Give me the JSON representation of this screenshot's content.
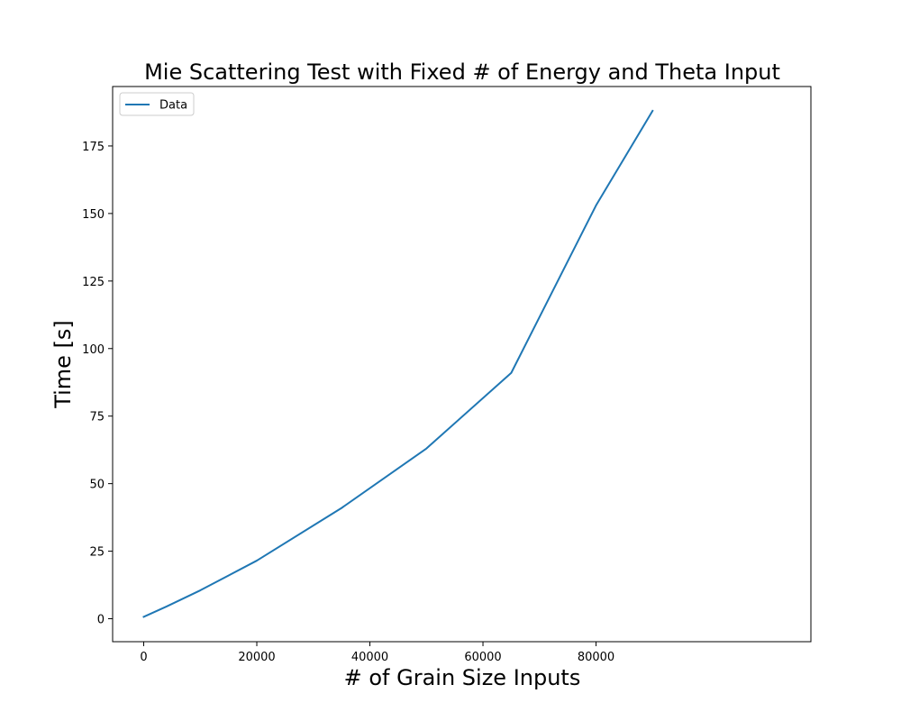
{
  "chart_data": {
    "type": "line",
    "title": "Mie Scattering Test with Fixed # of Energy and Theta Input",
    "xlabel": "# of Grain Size Inputs",
    "ylabel": "Time [s]",
    "xlim": [
      -5500,
      118000
    ],
    "ylim": [
      -8.5,
      197
    ],
    "xticks": [
      0,
      20000,
      40000,
      60000,
      80000
    ],
    "yticks": [
      0,
      25,
      50,
      75,
      100,
      125,
      150,
      175
    ],
    "xtick_labels": [
      "0",
      "20000",
      "40000",
      "60000",
      "80000"
    ],
    "ytick_labels": [
      "0",
      "25",
      "50",
      "75",
      "100",
      "125",
      "150",
      "175"
    ],
    "grid": false,
    "legend": {
      "placement": "top-left",
      "entries": [
        "Data"
      ]
    },
    "colors": {
      "series": "#1f77b4"
    },
    "series": [
      {
        "name": "Data",
        "x": [
          0,
          4000,
          10000,
          20000,
          35000,
          50000,
          65000,
          80000,
          90000
        ],
        "y": [
          0.7,
          4.5,
          10.5,
          21.5,
          41.0,
          63.0,
          91.0,
          153.0,
          188.0
        ]
      }
    ]
  }
}
